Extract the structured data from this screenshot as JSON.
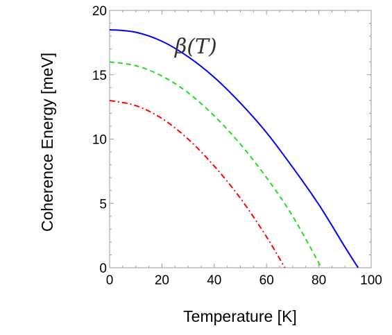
{
  "chart_data": {
    "type": "line",
    "xlabel": "Temperature [K]",
    "ylabel": "Coherence Energy [meV]",
    "xlim": [
      0,
      100
    ],
    "ylim": [
      0,
      20
    ],
    "xticks": [
      "0",
      "20",
      "40",
      "60",
      "80",
      "100"
    ],
    "yticks": [
      "0",
      "5",
      "10",
      "15",
      "20"
    ],
    "grid": false,
    "legend": "none",
    "annotation": "β(T)",
    "series": [
      {
        "color": "#0000ff",
        "style": "solid",
        "x": [
          0,
          10,
          20,
          30,
          40,
          50,
          60,
          70,
          80,
          90,
          95
        ],
        "y": [
          18.5,
          18.3,
          17.6,
          16.4,
          14.8,
          12.8,
          10.5,
          7.8,
          4.9,
          1.6,
          0
        ]
      },
      {
        "color": "#22dd22",
        "style": "dashed",
        "x": [
          0,
          10,
          20,
          30,
          40,
          50,
          60,
          70,
          81
        ],
        "y": [
          16,
          15.7,
          14.9,
          13.6,
          11.8,
          9.6,
          7.0,
          4.0,
          0
        ]
      },
      {
        "color": "#ff0000",
        "style": "dashdot",
        "x": [
          0,
          10,
          20,
          30,
          40,
          50,
          60,
          67
        ],
        "y": [
          13,
          12.6,
          11.6,
          10.0,
          7.9,
          5.4,
          2.4,
          0
        ]
      }
    ]
  }
}
